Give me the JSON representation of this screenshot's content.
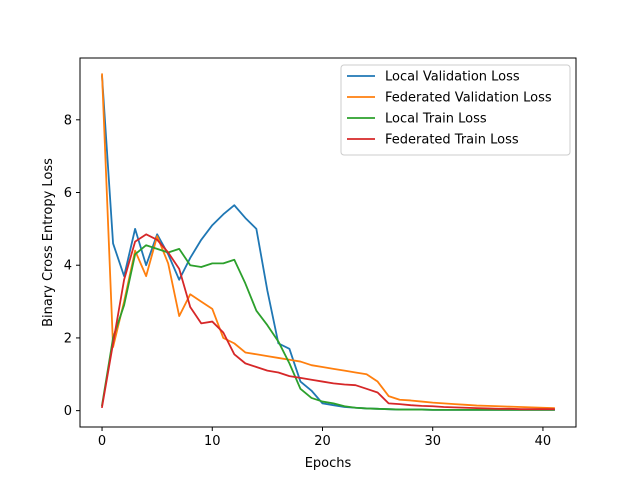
{
  "chart_data": {
    "type": "line",
    "xlabel": "Epochs",
    "ylabel": "Binary Cross Entropy Loss",
    "xlim": [
      -2,
      43
    ],
    "ylim": [
      -0.45,
      9.7
    ],
    "xticks": [
      0,
      10,
      20,
      30,
      40
    ],
    "yticks": [
      0,
      2,
      4,
      6,
      8
    ],
    "grid": false,
    "legend_position": "top-right",
    "x": [
      0,
      1,
      2,
      3,
      4,
      5,
      6,
      7,
      8,
      9,
      10,
      11,
      12,
      13,
      14,
      15,
      16,
      17,
      18,
      19,
      20,
      21,
      22,
      23,
      24,
      25,
      26,
      27,
      28,
      29,
      30,
      31,
      32,
      33,
      34,
      35,
      36,
      37,
      38,
      39,
      40,
      41
    ],
    "series": [
      {
        "name": "Local Validation Loss",
        "color": "#1f77b4",
        "values": [
          9.2,
          4.6,
          3.7,
          5.0,
          4.0,
          4.85,
          4.3,
          3.6,
          4.2,
          4.7,
          5.1,
          5.4,
          5.65,
          5.3,
          5.0,
          3.3,
          1.85,
          1.7,
          0.8,
          0.55,
          0.2,
          0.15,
          0.1,
          0.08,
          0.06,
          0.05,
          0.04,
          0.03,
          0.03,
          0.03,
          0.02,
          0.02,
          0.02,
          0.02,
          0.02,
          0.02,
          0.02,
          0.02,
          0.02,
          0.02,
          0.02,
          0.02
        ]
      },
      {
        "name": "Federated Validation Loss",
        "color": "#ff7f0e",
        "values": [
          9.25,
          1.75,
          3.0,
          4.4,
          3.7,
          4.8,
          4.05,
          2.6,
          3.2,
          3.0,
          2.8,
          2.0,
          1.85,
          1.6,
          1.55,
          1.5,
          1.45,
          1.4,
          1.35,
          1.25,
          1.2,
          1.15,
          1.1,
          1.05,
          1.0,
          0.8,
          0.4,
          0.3,
          0.28,
          0.25,
          0.22,
          0.2,
          0.18,
          0.16,
          0.14,
          0.13,
          0.12,
          0.11,
          0.1,
          0.09,
          0.08,
          0.07
        ]
      },
      {
        "name": "Local Train Loss",
        "color": "#2ca02c",
        "values": [
          0.15,
          2.0,
          2.9,
          4.3,
          4.55,
          4.45,
          4.35,
          4.45,
          4.0,
          3.95,
          4.05,
          4.05,
          4.15,
          3.5,
          2.75,
          2.35,
          1.9,
          1.3,
          0.6,
          0.35,
          0.25,
          0.2,
          0.12,
          0.08,
          0.06,
          0.05,
          0.04,
          0.03,
          0.03,
          0.03,
          0.02,
          0.02,
          0.02,
          0.02,
          0.02,
          0.02,
          0.02,
          0.02,
          0.02,
          0.02,
          0.02,
          0.02
        ]
      },
      {
        "name": "Federated Train Loss",
        "color": "#d62728",
        "values": [
          0.1,
          1.85,
          3.6,
          4.65,
          4.85,
          4.7,
          4.35,
          3.9,
          2.85,
          2.4,
          2.45,
          2.15,
          1.55,
          1.3,
          1.2,
          1.1,
          1.05,
          0.95,
          0.9,
          0.85,
          0.8,
          0.75,
          0.72,
          0.7,
          0.6,
          0.5,
          0.2,
          0.18,
          0.15,
          0.13,
          0.12,
          0.1,
          0.09,
          0.08,
          0.07,
          0.06,
          0.05,
          0.05,
          0.04,
          0.04,
          0.04,
          0.04
        ]
      }
    ]
  }
}
